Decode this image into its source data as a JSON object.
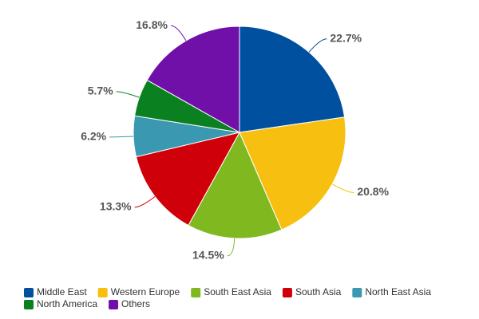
{
  "chart_data": {
    "type": "pie",
    "categories": [
      "Middle East",
      "Western Europe",
      "South East Asia",
      "South Asia",
      "North East Asia",
      "North America",
      "Others"
    ],
    "values": [
      22.7,
      20.8,
      14.5,
      13.3,
      6.2,
      5.7,
      16.8
    ],
    "value_labels": [
      "22.7%",
      "20.8%",
      "14.5%",
      "13.3%",
      "6.2%",
      "5.7%",
      "16.8%"
    ],
    "colors": [
      "#0050a0",
      "#f7c010",
      "#80b820",
      "#d0000b",
      "#3a98b0",
      "#0a8020",
      "#7010a8"
    ]
  }
}
